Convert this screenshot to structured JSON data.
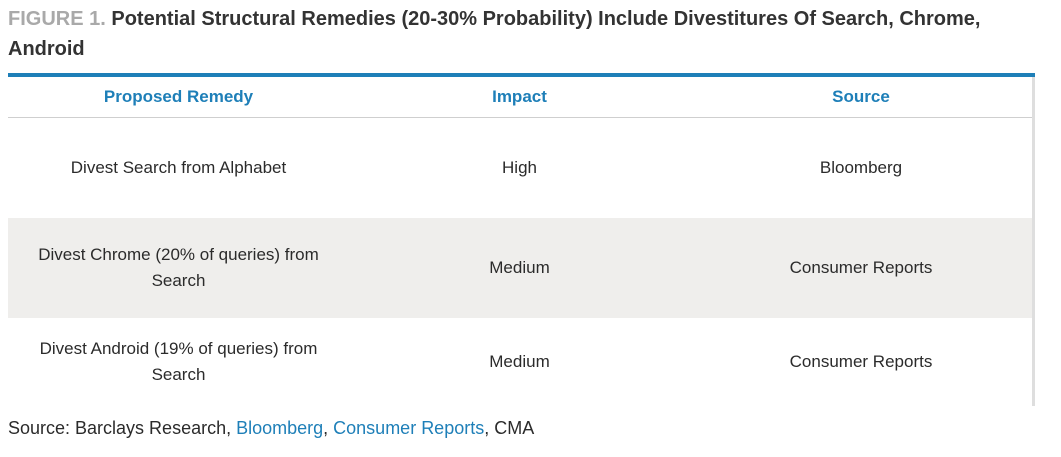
{
  "figure": {
    "label": "FIGURE 1.",
    "title": "Potential Structural Remedies (20-30% Probability) Include Divestitures Of Search, Chrome, Android"
  },
  "table": {
    "headers": [
      "Proposed Remedy",
      "Impact",
      "Source"
    ],
    "rows": [
      [
        "Divest Search from Alphabet",
        "High",
        "Bloomberg"
      ],
      [
        "Divest Chrome (20% of queries) from Search",
        "Medium",
        "Consumer Reports"
      ],
      [
        "Divest Android (19% of queries) from Search",
        "Medium",
        "Consumer Reports"
      ]
    ]
  },
  "source": {
    "prefix": "Source: Barclays Research, ",
    "link1": "Bloomberg",
    "sep1": ", ",
    "link2": "Consumer Reports",
    "suffix": ", CMA"
  },
  "colors": {
    "accent": "#1e7fb8",
    "label_gray": "#a9a9a9",
    "row_shade": "#efeeec"
  }
}
